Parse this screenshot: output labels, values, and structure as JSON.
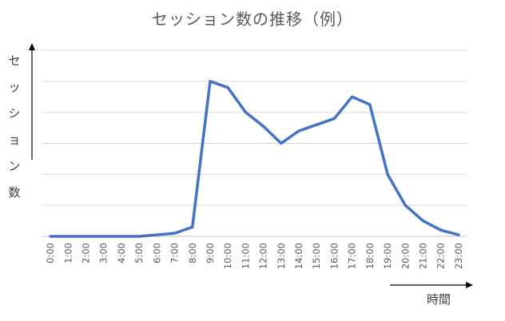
{
  "chart_data": {
    "type": "line",
    "title": "セッション数の推移（例）",
    "xlabel": "時間",
    "ylabel": "セッション数",
    "categories": [
      "0:00",
      "1:00",
      "2:00",
      "3:00",
      "4:00",
      "5:00",
      "6:00",
      "7:00",
      "8:00",
      "9:00",
      "10:00",
      "11:00",
      "12:00",
      "13:00",
      "14:00",
      "15:00",
      "16:00",
      "17:00",
      "18:00",
      "19:00",
      "20:00",
      "21:00",
      "22:00",
      "23:00"
    ],
    "series": [
      {
        "values": [
          0,
          0,
          0,
          0,
          0,
          0,
          0.5,
          1,
          3,
          50,
          48,
          40,
          35.5,
          30,
          34,
          36,
          38,
          45,
          42.5,
          20,
          10,
          5,
          2,
          0.5
        ]
      }
    ],
    "ylim": [
      0,
      60
    ],
    "y_gridlines": 6,
    "grid": true,
    "line_color": "#4472C4"
  }
}
